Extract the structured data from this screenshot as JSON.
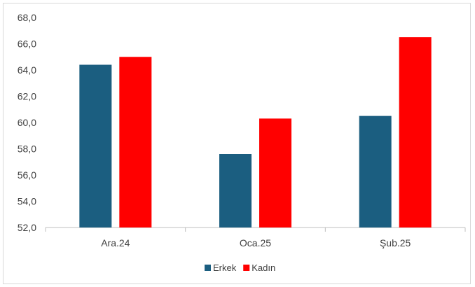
{
  "chart_data": {
    "type": "bar",
    "title": "",
    "xlabel": "",
    "ylabel": "",
    "categories": [
      "Ara.24",
      "Oca.25",
      "Şub.25"
    ],
    "series": [
      {
        "name": "Erkek",
        "color": "#1b5e80",
        "values": [
          64.4,
          57.6,
          60.5
        ]
      },
      {
        "name": "Kadın",
        "color": "#ff0000",
        "values": [
          65.0,
          60.3,
          66.5
        ]
      }
    ],
    "ylim": [
      52.0,
      68.0
    ],
    "yticks": [
      "52,0",
      "54,0",
      "56,0",
      "58,0",
      "60,0",
      "62,0",
      "64,0",
      "66,0",
      "68,0"
    ],
    "grid": false,
    "legend_position": "bottom"
  }
}
